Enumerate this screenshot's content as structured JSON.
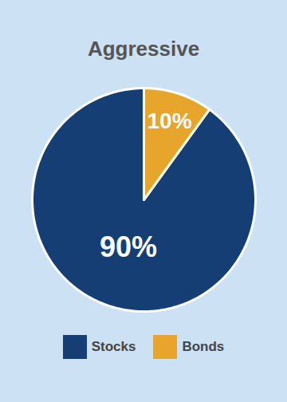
{
  "chart_data": {
    "type": "pie",
    "title": "Aggressive",
    "categories": [
      "Stocks",
      "Bonds"
    ],
    "values": [
      90,
      10
    ],
    "value_labels": [
      "90%",
      "10%"
    ],
    "colors": [
      "#143e74",
      "#e8a52c"
    ],
    "data_labels": true,
    "legend": "bottom"
  }
}
